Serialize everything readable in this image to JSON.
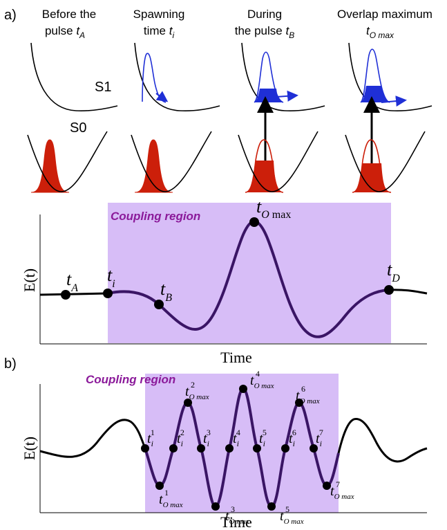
{
  "panel_a": {
    "label": "a)",
    "columns": [
      {
        "title_line1": "Before the",
        "title_line2": "pulse ",
        "sym": "t",
        "sub": "A"
      },
      {
        "title_line1": "Spawning",
        "title_line2": "time  ",
        "sym": "t",
        "sub": "i"
      },
      {
        "title_line1": "During",
        "title_line2": "the pulse ",
        "sym": "t",
        "sub": "B"
      },
      {
        "title_line1": "Overlap maximum",
        "title_line2": "",
        "sym": "t",
        "sub": "O max"
      }
    ],
    "state_upper": "S1",
    "state_lower": "S0",
    "pulse_plot": {
      "region_label": "Coupling region",
      "y_label": "E(t)",
      "x_label": "Time",
      "points": [
        {
          "sym": "t",
          "sub": "A"
        },
        {
          "sym": "t",
          "sub": "i"
        },
        {
          "sym": "t",
          "sub": "B"
        },
        {
          "sym": "t",
          "sub": "O",
          "tail": " max"
        },
        {
          "sym": "t",
          "sub": "D"
        }
      ]
    }
  },
  "panel_b": {
    "label": "b)",
    "region_label": "Coupling region",
    "y_label": "E(t)",
    "x_label": "Time",
    "crossings": [
      {
        "sym": "t",
        "sub": "i",
        "sup": "1"
      },
      {
        "sym": "t",
        "sub": "i",
        "sup": "2"
      },
      {
        "sym": "t",
        "sub": "i",
        "sup": "3"
      },
      {
        "sym": "t",
        "sub": "i",
        "sup": "4"
      },
      {
        "sym": "t",
        "sub": "i",
        "sup": "5"
      },
      {
        "sym": "t",
        "sub": "i",
        "sup": "6"
      },
      {
        "sym": "t",
        "sub": "i",
        "sup": "7"
      }
    ],
    "extrema": [
      {
        "sym": "t",
        "sub": "O max",
        "sup": "1"
      },
      {
        "sym": "t",
        "sub": "O max",
        "sup": "2"
      },
      {
        "sym": "t",
        "sub": "O max",
        "sup": "3"
      },
      {
        "sym": "t",
        "sub": "O max",
        "sup": "4"
      },
      {
        "sym": "t",
        "sub": "O max",
        "sup": "5"
      },
      {
        "sym": "t",
        "sub": "O max",
        "sup": "6"
      },
      {
        "sym": "t",
        "sub": "O max",
        "sup": "7"
      }
    ]
  },
  "colors": {
    "region_fill": "#d7bdf7",
    "pulse_line": "#3a1565",
    "ground_packet": "#cc1f0a",
    "excited_packet": "#1f2fd6",
    "region_label": "#8b1a9a"
  }
}
